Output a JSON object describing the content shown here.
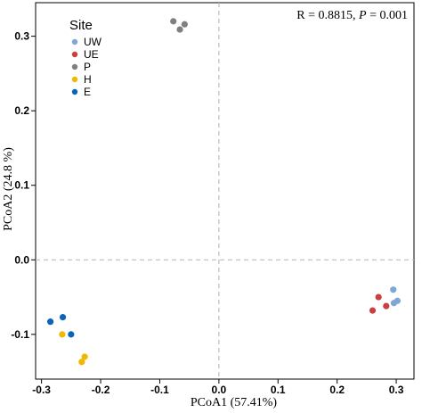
{
  "chart_data": {
    "type": "scatter",
    "xlabel": "PCoA1 (57.41%)",
    "ylabel": "PCoA2  (24.8 %)",
    "xlim": [
      -0.31,
      0.33
    ],
    "ylim": [
      -0.16,
      0.345
    ],
    "xticks": [
      -0.3,
      -0.2,
      -0.1,
      0.0,
      0.1,
      0.2,
      0.3
    ],
    "xtick_labels": [
      "-0.3",
      "-0.2",
      "-0.1",
      "0.0",
      "0.1",
      "0.2",
      "0.3"
    ],
    "yticks": [
      -0.1,
      0.0,
      0.1,
      0.2,
      0.3
    ],
    "ytick_labels": [
      "-0.1",
      "0.0",
      "0.1",
      "0.2",
      "0.3"
    ],
    "reference_lines": {
      "x": 0.0,
      "y": 0.0,
      "style": "dashed"
    },
    "grid": false,
    "legend": {
      "title": "Site",
      "position": "top-left"
    },
    "annotation": {
      "prefix": "R = 0.8815, ",
      "var": "P",
      "suffix": " = 0.001",
      "position": "top-right"
    },
    "series": [
      {
        "name": "UW",
        "color": "#7fa7d6",
        "points": [
          [
            0.295,
            -0.04
          ],
          [
            0.296,
            -0.058
          ],
          [
            0.302,
            -0.055
          ]
        ]
      },
      {
        "name": "UE",
        "color": "#cc3f3f",
        "points": [
          [
            0.27,
            -0.05
          ],
          [
            0.283,
            -0.062
          ],
          [
            0.26,
            -0.068
          ]
        ]
      },
      {
        "name": "P",
        "color": "#808080",
        "points": [
          [
            -0.077,
            0.32
          ],
          [
            -0.058,
            0.316
          ],
          [
            -0.066,
            0.309
          ]
        ]
      },
      {
        "name": "H",
        "color": "#f0b800",
        "points": [
          [
            -0.265,
            -0.1
          ],
          [
            -0.227,
            -0.13
          ],
          [
            -0.232,
            -0.137
          ]
        ]
      },
      {
        "name": "E",
        "color": "#0a64b8",
        "points": [
          [
            -0.285,
            -0.083
          ],
          [
            -0.264,
            -0.077
          ],
          [
            -0.25,
            -0.1
          ]
        ]
      }
    ]
  }
}
